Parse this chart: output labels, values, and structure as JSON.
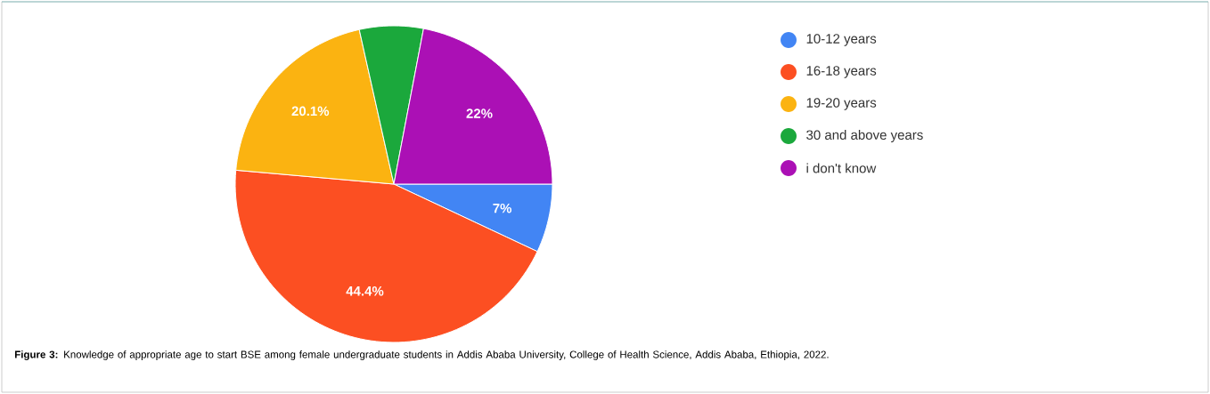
{
  "chart_data": {
    "type": "pie",
    "categories": [
      "10-12 years",
      "16-18 years",
      "19-20 years",
      "30 and above years",
      "i don't know"
    ],
    "values": [
      7,
      44.4,
      20.1,
      6.5,
      22
    ],
    "colors": [
      "#4285f4",
      "#fc4f22",
      "#fbb311",
      "#1ba83c",
      "#ab10b5"
    ],
    "value_labels": [
      "7%",
      "44.4%",
      "20.1%",
      null,
      "22%"
    ],
    "legend": "right",
    "annotations": [
      "**Figure 3:** Knowledge of appropriate age to start BSE among female undergraduate students in Addis Ababa University, College of Health Science, Addis Ababa, Ethiopia, 2022."
    ]
  }
}
